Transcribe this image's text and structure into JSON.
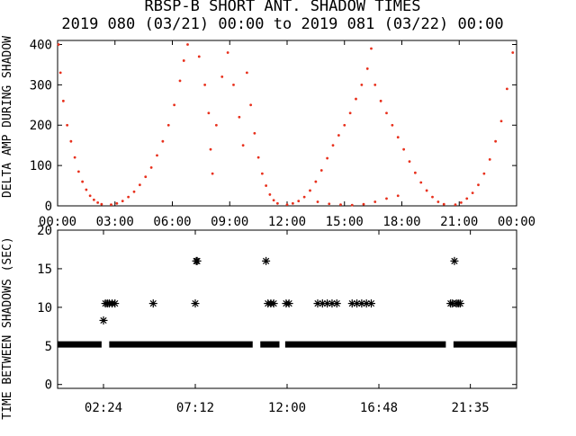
{
  "chart_data": [
    {
      "type": "scatter",
      "title": "RBSP-B SHORT ANT. SHADOW TIMES",
      "subtitle": "2019 080 (03/21) 00:00 to 2019 081 (03/22) 00:00",
      "xlabel": "",
      "ylabel": "DELTA AMP DURING SHADOW",
      "xlim": [
        "00:00",
        "24:00"
      ],
      "ylim": [
        0,
        410
      ],
      "x_tick_labels": [
        "00:00",
        "03:00",
        "06:00",
        "09:00",
        "12:00",
        "15:00",
        "18:00",
        "21:00",
        "00:00"
      ],
      "y_tick_labels": [
        "0",
        "100",
        "200",
        "300",
        "400"
      ],
      "grid": false,
      "colors": {
        "points": "#e8301c"
      },
      "series": [
        {
          "points_hours_vs_amp": [
            [
              0.05,
              400
            ],
            [
              0.15,
              330
            ],
            [
              0.3,
              260
            ],
            [
              0.5,
              200
            ],
            [
              0.7,
              160
            ],
            [
              0.9,
              120
            ],
            [
              1.1,
              85
            ],
            [
              1.3,
              60
            ],
            [
              1.5,
              40
            ],
            [
              1.7,
              25
            ],
            [
              1.9,
              15
            ],
            [
              2.1,
              8
            ],
            [
              2.3,
              4
            ],
            [
              2.8,
              3
            ],
            [
              3.1,
              6
            ],
            [
              3.4,
              12
            ],
            [
              3.7,
              22
            ],
            [
              4.0,
              35
            ],
            [
              4.3,
              52
            ],
            [
              4.6,
              72
            ],
            [
              4.9,
              95
            ],
            [
              5.2,
              125
            ],
            [
              5.5,
              160
            ],
            [
              5.8,
              200
            ],
            [
              6.1,
              250
            ],
            [
              6.4,
              310
            ],
            [
              6.6,
              360
            ],
            [
              6.8,
              400
            ],
            [
              7.4,
              370
            ],
            [
              7.7,
              300
            ],
            [
              7.9,
              230
            ],
            [
              8.0,
              140
            ],
            [
              8.1,
              80
            ],
            [
              8.3,
              200
            ],
            [
              8.6,
              320
            ],
            [
              8.9,
              380
            ],
            [
              9.2,
              300
            ],
            [
              9.5,
              220
            ],
            [
              9.7,
              150
            ],
            [
              9.9,
              330
            ],
            [
              10.1,
              250
            ],
            [
              10.3,
              180
            ],
            [
              10.5,
              120
            ],
            [
              10.7,
              80
            ],
            [
              10.9,
              50
            ],
            [
              11.1,
              28
            ],
            [
              11.3,
              14
            ],
            [
              11.5,
              6
            ],
            [
              12.0,
              3
            ],
            [
              12.3,
              6
            ],
            [
              12.6,
              12
            ],
            [
              12.9,
              22
            ],
            [
              13.2,
              38
            ],
            [
              13.5,
              60
            ],
            [
              13.8,
              88
            ],
            [
              14.1,
              118
            ],
            [
              14.4,
              150
            ],
            [
              14.7,
              175
            ],
            [
              15.0,
              200
            ],
            [
              15.3,
              230
            ],
            [
              15.6,
              265
            ],
            [
              15.9,
              300
            ],
            [
              16.2,
              340
            ],
            [
              16.4,
              390
            ],
            [
              16.6,
              300
            ],
            [
              16.9,
              260
            ],
            [
              17.2,
              230
            ],
            [
              17.5,
              200
            ],
            [
              17.8,
              170
            ],
            [
              18.1,
              140
            ],
            [
              18.4,
              110
            ],
            [
              18.7,
              82
            ],
            [
              19.0,
              58
            ],
            [
              19.3,
              38
            ],
            [
              19.6,
              22
            ],
            [
              19.9,
              10
            ],
            [
              20.2,
              4
            ],
            [
              20.8,
              3
            ],
            [
              21.1,
              8
            ],
            [
              21.4,
              18
            ],
            [
              21.7,
              32
            ],
            [
              22.0,
              52
            ],
            [
              22.3,
              80
            ],
            [
              22.6,
              115
            ],
            [
              22.9,
              160
            ],
            [
              23.2,
              210
            ],
            [
              23.5,
              290
            ],
            [
              23.8,
              380
            ],
            [
              13.6,
              10
            ],
            [
              14.2,
              5
            ],
            [
              14.8,
              3
            ],
            [
              15.4,
              2
            ],
            [
              16.0,
              4
            ],
            [
              16.6,
              10
            ],
            [
              17.2,
              18
            ],
            [
              17.8,
              25
            ]
          ]
        }
      ]
    },
    {
      "type": "scatter",
      "xlabel": "",
      "ylabel": "TIME BETWEEN SHADOWS (SEC)",
      "xlim": [
        "00:00",
        "24:00"
      ],
      "ylim": [
        -0.5,
        20
      ],
      "x_tick_labels": [
        "02:24",
        "07:12",
        "12:00",
        "16:48",
        "21:35"
      ],
      "y_tick_labels": [
        "0",
        "5",
        "10",
        "15",
        "20"
      ],
      "grid": false,
      "colors": {
        "points": "#000000"
      },
      "series": [
        {
          "baseline_value": 5.2,
          "baseline_segments_hours": [
            [
              0.0,
              2.3
            ],
            [
              2.7,
              10.2
            ],
            [
              10.6,
              11.6
            ],
            [
              11.9,
              20.3
            ],
            [
              20.7,
              24.0
            ]
          ],
          "points_hours_vs_seconds": [
            [
              2.4,
              8.3
            ],
            [
              2.5,
              10.5
            ],
            [
              2.6,
              10.5
            ],
            [
              2.7,
              10.5
            ],
            [
              2.85,
              10.5
            ],
            [
              3.0,
              10.5
            ],
            [
              5.0,
              10.5
            ],
            [
              7.2,
              10.5
            ],
            [
              7.25,
              16.0
            ],
            [
              7.3,
              16.0
            ],
            [
              10.9,
              16.0
            ],
            [
              11.0,
              10.5
            ],
            [
              11.15,
              10.5
            ],
            [
              11.3,
              10.5
            ],
            [
              11.95,
              10.5
            ],
            [
              12.1,
              10.5
            ],
            [
              13.6,
              10.5
            ],
            [
              13.85,
              10.5
            ],
            [
              14.1,
              10.5
            ],
            [
              14.35,
              10.5
            ],
            [
              14.6,
              10.5
            ],
            [
              15.4,
              10.5
            ],
            [
              15.65,
              10.5
            ],
            [
              15.9,
              10.5
            ],
            [
              16.15,
              10.5
            ],
            [
              16.4,
              10.5
            ],
            [
              20.55,
              10.5
            ],
            [
              20.65,
              10.5
            ],
            [
              20.75,
              16.0
            ],
            [
              20.85,
              10.5
            ],
            [
              20.95,
              10.5
            ],
            [
              21.05,
              10.5
            ]
          ]
        }
      ]
    }
  ]
}
